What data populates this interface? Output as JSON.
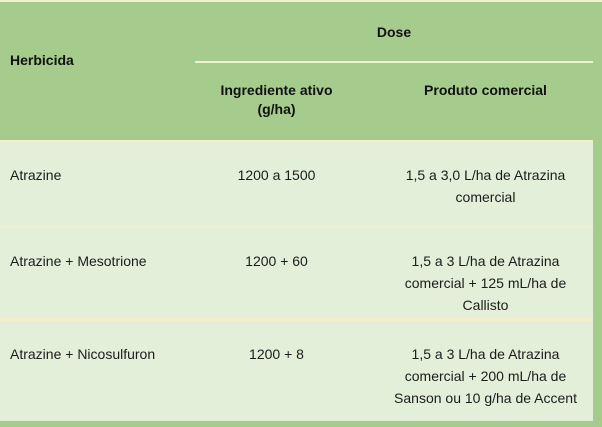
{
  "table": {
    "header": {
      "herbicida": "Herbicida",
      "dose": "Dose",
      "ingrediente_line1": "Ingrediente ativo",
      "ingrediente_line2": "(g/ha)",
      "produto": "Produto comercial"
    },
    "rows": [
      {
        "herbicide": "Atrazine",
        "active_ingredient": "1200 a 1500",
        "commercial_product": "1,5 a 3,0 L/ha de Atrazina comercial"
      },
      {
        "herbicide": "Atrazine + Mesotrione",
        "active_ingredient": "1200 + 60",
        "commercial_product": "1,5 a 3 L/ha de Atrazina comercial + 125 mL/ha de Callisto"
      },
      {
        "herbicide": "Atrazine + Nicosulfuron",
        "active_ingredient": "1200 + 8",
        "commercial_product": "1,5 a 3 L/ha de Atrazina comercial + 200 mL/ha de Sanson ou 10 g/ha de Accent"
      }
    ],
    "colors": {
      "header_bg": "#a5cc8d",
      "row_bg": "#e4efda",
      "divider": "#f4efcb",
      "text": "#1c1c1c"
    }
  },
  "chart_data": {
    "type": "table",
    "title": "",
    "columns": [
      "Herbicida",
      "Dose - Ingrediente ativo (g/ha)",
      "Dose - Produto comercial"
    ],
    "rows": [
      [
        "Atrazine",
        "1200 a 1500",
        "1,5 a 3,0 L/ha de Atrazina comercial"
      ],
      [
        "Atrazine + Mesotrione",
        "1200 + 60",
        "1,5 a 3 L/ha de Atrazina comercial + 125 mL/ha de Callisto"
      ],
      [
        "Atrazine + Nicosulfuron",
        "1200 + 8",
        "1,5 a 3 L/ha de Atrazina comercial + 200 mL/ha de Sanson ou 10 g/ha de Accent"
      ]
    ]
  }
}
